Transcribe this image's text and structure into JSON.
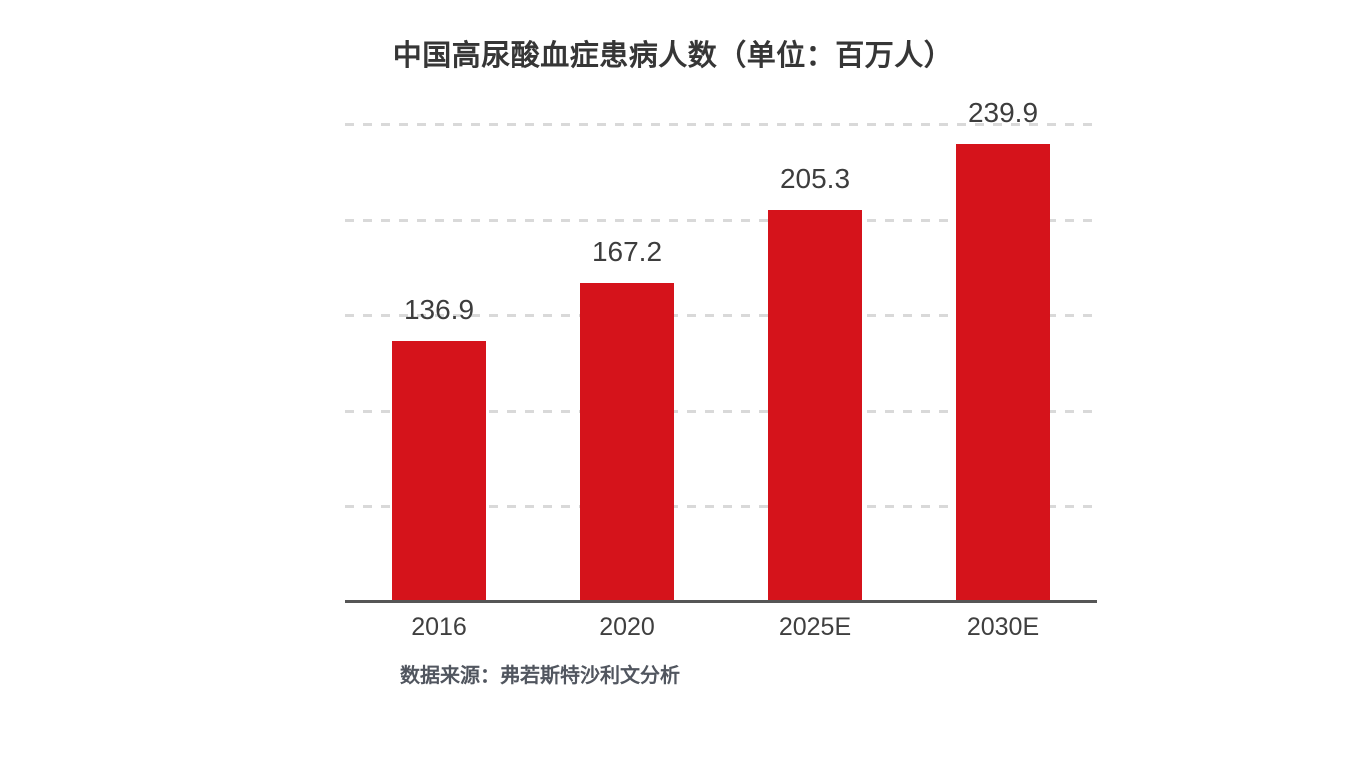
{
  "title": "中国高尿酸血症患病人数（单位：百万人）",
  "source_note": "数据来源：弗若斯特沙利文分析",
  "colors": {
    "bar": "#d5131b",
    "gridline": "#d9d9d9",
    "axis": "#565656",
    "value_label": "#3d3d3d",
    "x_label": "#3f3f3f",
    "title": "#363636",
    "source": "#51565f",
    "background": "#ffffff"
  },
  "chart_data": {
    "type": "bar",
    "categories": [
      "2016",
      "2020",
      "2025E",
      "2030E"
    ],
    "values": [
      136.9,
      167.2,
      205.3,
      239.9
    ],
    "value_labels": [
      "136.9",
      "167.2",
      "205.3",
      "239.9"
    ],
    "title": "中国高尿酸血症患病人数（单位：百万人）",
    "xlabel": "",
    "ylabel": "",
    "ylim": [
      0,
      250
    ],
    "gridlines": [
      50,
      100,
      150,
      200,
      250
    ],
    "grid_style": "dashed",
    "legend": "none",
    "bar_color": "#d5131b"
  }
}
